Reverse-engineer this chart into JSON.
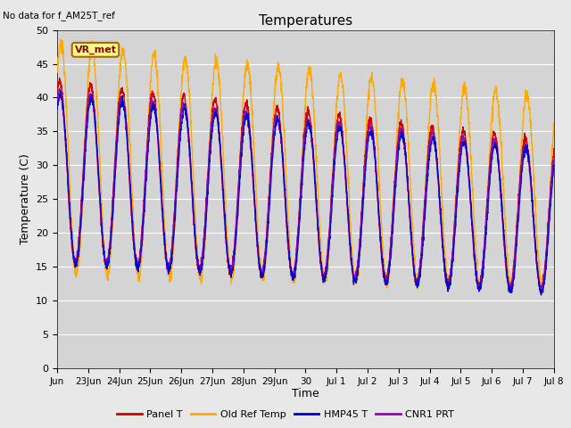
{
  "title": "Temperatures",
  "xlabel": "Time",
  "ylabel": "Temperature (C)",
  "ylim": [
    0,
    50
  ],
  "note": "No data for f_AM25T_ref",
  "vr_label": "VR_met",
  "legend": [
    "Panel T",
    "Old Ref Temp",
    "HMP45 T",
    "CNR1 PRT"
  ],
  "line_colors": [
    "#cc0000",
    "#ffaa00",
    "#0000cc",
    "#9900bb"
  ],
  "background_color": "#e8e8e8",
  "plot_bg_color": "#d4d4d4",
  "x_tick_labels": [
    "Jun",
    "23Jun",
    "24Jun",
    "25Jun",
    "26Jun",
    "27Jun",
    "28Jun",
    "29Jun",
    "30",
    "Jul 1",
    "Jul 2",
    "Jul 3",
    "Jul 4",
    "Jul 5",
    "Jul 6",
    "Jul 7",
    "Jul 8"
  ],
  "x_tick_positions": [
    0,
    1,
    2,
    3,
    4,
    5,
    6,
    7,
    8,
    9,
    10,
    11,
    12,
    13,
    14,
    15,
    16
  ]
}
